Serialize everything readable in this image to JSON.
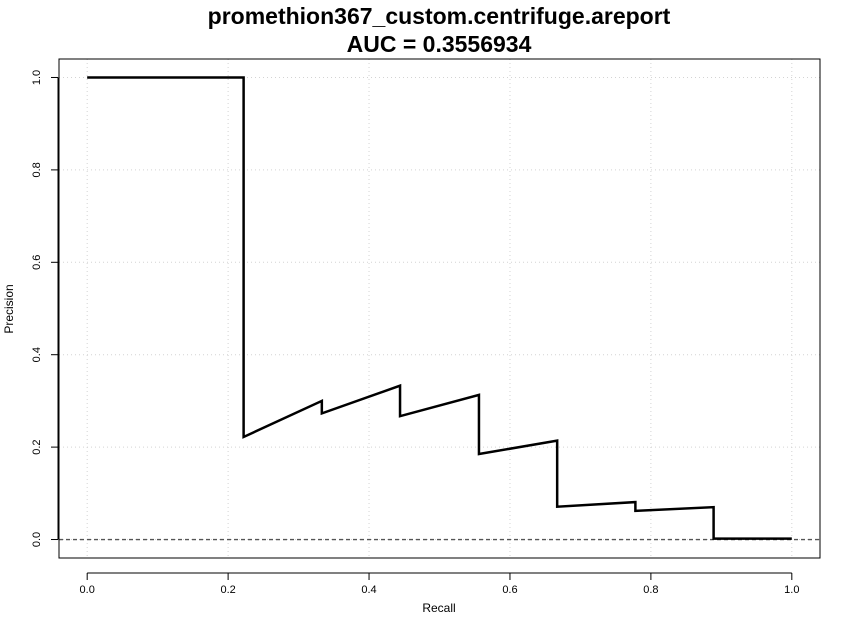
{
  "chart_data": {
    "type": "line",
    "title": "promethion367_custom.centrifuge.areport",
    "subtitle": "AUC = 0.3556934",
    "xlabel": "Recall",
    "ylabel": "Precision",
    "xlim": [
      -0.04,
      1.04
    ],
    "ylim": [
      -0.04,
      1.04
    ],
    "xticks": [
      0.0,
      0.2,
      0.4,
      0.6,
      0.8,
      1.0
    ],
    "yticks": [
      0.0,
      0.2,
      0.4,
      0.6,
      0.8,
      1.0
    ],
    "xtick_labels": [
      "0.0",
      "0.2",
      "0.4",
      "0.6",
      "0.8",
      "1.0"
    ],
    "ytick_labels": [
      "0.0",
      "0.2",
      "0.4",
      "0.6",
      "0.8",
      "1.0"
    ],
    "grid": true,
    "baseline": {
      "y": 0.0,
      "style": "dashed",
      "color": "#555555"
    },
    "series": [
      {
        "color": "#000000",
        "x": [
          0.0,
          0.222,
          0.222,
          0.333,
          0.333,
          0.444,
          0.444,
          0.556,
          0.556,
          0.667,
          0.667,
          0.778,
          0.778,
          0.889,
          0.889,
          1.0
        ],
        "y": [
          1.0,
          1.0,
          0.222,
          0.3,
          0.273,
          0.333,
          0.267,
          0.313,
          0.185,
          0.214,
          0.071,
          0.081,
          0.062,
          0.07,
          0.002,
          0.002
        ]
      }
    ]
  }
}
